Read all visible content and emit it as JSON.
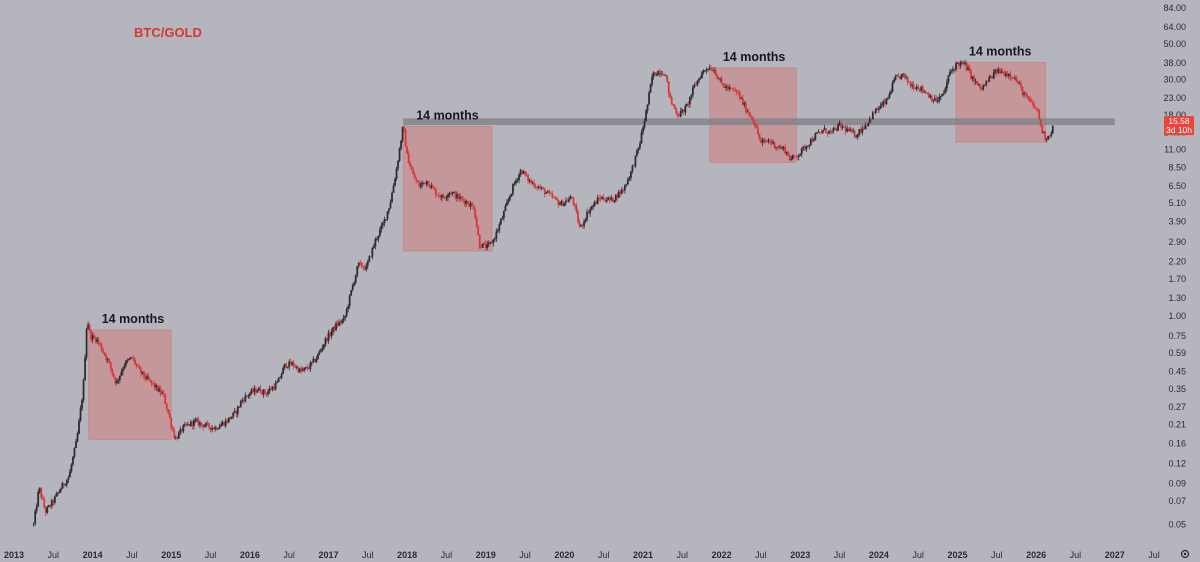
{
  "chart_data": {
    "type": "line",
    "title": "BTC/GOLD",
    "scale": "log",
    "ylim": [
      0.04,
      84
    ],
    "xlim": [
      2013.0,
      2027.55
    ],
    "y_ticks": [
      "84.00",
      "64.00",
      "50.00",
      "38.00",
      "30.00",
      "23.00",
      "18.00",
      "14.00",
      "11.00",
      "8.50",
      "6.50",
      "5.10",
      "3.90",
      "2.90",
      "2.20",
      "1.70",
      "1.30",
      "1.00",
      "0.75",
      "0.59",
      "0.45",
      "0.35",
      "0.27",
      "0.21",
      "0.16",
      "0.12",
      "0.09",
      "0.07",
      "0.05"
    ],
    "x_ticks": [
      {
        "label": "2013",
        "x": 2013.0
      },
      {
        "label": "Jul",
        "x": 2013.5
      },
      {
        "label": "2014",
        "x": 2014.0
      },
      {
        "label": "Jul",
        "x": 2014.5
      },
      {
        "label": "2015",
        "x": 2015.0
      },
      {
        "label": "Jul",
        "x": 2015.5
      },
      {
        "label": "2016",
        "x": 2016.0
      },
      {
        "label": "Jul",
        "x": 2016.5
      },
      {
        "label": "2017",
        "x": 2017.0
      },
      {
        "label": "Jul",
        "x": 2017.5
      },
      {
        "label": "2018",
        "x": 2018.0
      },
      {
        "label": "Jul",
        "x": 2018.5
      },
      {
        "label": "2019",
        "x": 2019.0
      },
      {
        "label": "Jul",
        "x": 2019.5
      },
      {
        "label": "2020",
        "x": 2020.0
      },
      {
        "label": "Jul",
        "x": 2020.5
      },
      {
        "label": "2021",
        "x": 2021.0
      },
      {
        "label": "Jul",
        "x": 2021.5
      },
      {
        "label": "2022",
        "x": 2022.0
      },
      {
        "label": "Jul",
        "x": 2022.5
      },
      {
        "label": "2023",
        "x": 2023.0
      },
      {
        "label": "Jul",
        "x": 2023.5
      },
      {
        "label": "2024",
        "x": 2024.0
      },
      {
        "label": "Jul",
        "x": 2024.5
      },
      {
        "label": "2025",
        "x": 2025.0
      },
      {
        "label": "Jul",
        "x": 2025.5
      },
      {
        "label": "2026",
        "x": 2026.0
      },
      {
        "label": "Jul",
        "x": 2026.5
      },
      {
        "label": "2027",
        "x": 2027.0
      },
      {
        "label": "Jul",
        "x": 2027.5
      }
    ],
    "series": [
      {
        "points": [
          [
            2013.25,
            0.05
          ],
          [
            2013.32,
            0.085
          ],
          [
            2013.4,
            0.06
          ],
          [
            2013.5,
            0.07
          ],
          [
            2013.6,
            0.085
          ],
          [
            2013.7,
            0.1
          ],
          [
            2013.8,
            0.17
          ],
          [
            2013.88,
            0.35
          ],
          [
            2013.93,
            0.98
          ],
          [
            2013.97,
            0.75
          ],
          [
            2014.05,
            0.72
          ],
          [
            2014.12,
            0.62
          ],
          [
            2014.2,
            0.52
          ],
          [
            2014.3,
            0.38
          ],
          [
            2014.4,
            0.5
          ],
          [
            2014.5,
            0.55
          ],
          [
            2014.6,
            0.45
          ],
          [
            2014.7,
            0.4
          ],
          [
            2014.8,
            0.36
          ],
          [
            2014.9,
            0.32
          ],
          [
            2014.97,
            0.24
          ],
          [
            2015.05,
            0.17
          ],
          [
            2015.15,
            0.2
          ],
          [
            2015.3,
            0.22
          ],
          [
            2015.4,
            0.21
          ],
          [
            2015.55,
            0.2
          ],
          [
            2015.7,
            0.22
          ],
          [
            2015.82,
            0.25
          ],
          [
            2015.9,
            0.3
          ],
          [
            2016.0,
            0.33
          ],
          [
            2016.1,
            0.35
          ],
          [
            2016.2,
            0.33
          ],
          [
            2016.35,
            0.38
          ],
          [
            2016.45,
            0.5
          ],
          [
            2016.55,
            0.5
          ],
          [
            2016.65,
            0.45
          ],
          [
            2016.75,
            0.48
          ],
          [
            2016.85,
            0.55
          ],
          [
            2016.97,
            0.72
          ],
          [
            2017.1,
            0.88
          ],
          [
            2017.2,
            0.95
          ],
          [
            2017.3,
            1.5
          ],
          [
            2017.38,
            2.1
          ],
          [
            2017.48,
            2.0
          ],
          [
            2017.6,
            3.0
          ],
          [
            2017.7,
            3.8
          ],
          [
            2017.78,
            5.0
          ],
          [
            2017.86,
            8.0
          ],
          [
            2017.95,
            15.5
          ],
          [
            2018.0,
            10.0
          ],
          [
            2018.08,
            7.5
          ],
          [
            2018.15,
            6.5
          ],
          [
            2018.25,
            7.0
          ],
          [
            2018.35,
            6.0
          ],
          [
            2018.45,
            5.5
          ],
          [
            2018.55,
            6.0
          ],
          [
            2018.65,
            5.5
          ],
          [
            2018.75,
            5.2
          ],
          [
            2018.85,
            4.8
          ],
          [
            2018.92,
            2.8
          ],
          [
            2019.02,
            2.7
          ],
          [
            2019.1,
            3.0
          ],
          [
            2019.2,
            4.0
          ],
          [
            2019.35,
            6.5
          ],
          [
            2019.45,
            8.2
          ],
          [
            2019.55,
            7.0
          ],
          [
            2019.65,
            6.5
          ],
          [
            2019.75,
            6.0
          ],
          [
            2019.85,
            5.5
          ],
          [
            2019.95,
            5.0
          ],
          [
            2020.1,
            5.5
          ],
          [
            2020.2,
            3.5
          ],
          [
            2020.3,
            4.5
          ],
          [
            2020.45,
            5.5
          ],
          [
            2020.6,
            5.3
          ],
          [
            2020.75,
            6.2
          ],
          [
            2020.85,
            8.0
          ],
          [
            2020.95,
            11.5
          ],
          [
            2021.05,
            20.0
          ],
          [
            2021.12,
            32.0
          ],
          [
            2021.2,
            34.0
          ],
          [
            2021.28,
            33.0
          ],
          [
            2021.35,
            22.0
          ],
          [
            2021.45,
            18.0
          ],
          [
            2021.55,
            20.0
          ],
          [
            2021.65,
            27.0
          ],
          [
            2021.75,
            33.0
          ],
          [
            2021.82,
            36.0
          ],
          [
            2021.9,
            35.0
          ],
          [
            2022.0,
            28.0
          ],
          [
            2022.1,
            26.0
          ],
          [
            2022.2,
            25.0
          ],
          [
            2022.3,
            20.0
          ],
          [
            2022.4,
            17.0
          ],
          [
            2022.5,
            12.0
          ],
          [
            2022.6,
            12.5
          ],
          [
            2022.7,
            11.5
          ],
          [
            2022.8,
            11.0
          ],
          [
            2022.88,
            9.5
          ],
          [
            2023.0,
            10.5
          ],
          [
            2023.1,
            12.0
          ],
          [
            2023.2,
            13.5
          ],
          [
            2023.3,
            14.5
          ],
          [
            2023.4,
            14.0
          ],
          [
            2023.5,
            15.5
          ],
          [
            2023.6,
            14.5
          ],
          [
            2023.7,
            13.5
          ],
          [
            2023.85,
            16.0
          ],
          [
            2023.95,
            19.0
          ],
          [
            2024.1,
            22.0
          ],
          [
            2024.2,
            30.0
          ],
          [
            2024.3,
            32.0
          ],
          [
            2024.4,
            28.0
          ],
          [
            2024.5,
            27.0
          ],
          [
            2024.6,
            25.0
          ],
          [
            2024.72,
            22.0
          ],
          [
            2024.82,
            24.0
          ],
          [
            2024.9,
            33.0
          ],
          [
            2025.0,
            38.0
          ],
          [
            2025.1,
            37.0
          ],
          [
            2025.2,
            30.0
          ],
          [
            2025.3,
            26.0
          ],
          [
            2025.4,
            30.0
          ],
          [
            2025.5,
            34.0
          ],
          [
            2025.6,
            33.0
          ],
          [
            2025.7,
            32.0
          ],
          [
            2025.78,
            28.0
          ],
          [
            2025.85,
            24.0
          ],
          [
            2025.95,
            21.0
          ],
          [
            2026.02,
            19.0
          ],
          [
            2026.07,
            14.5
          ],
          [
            2026.12,
            13.0
          ],
          [
            2026.17,
            13.5
          ],
          [
            2026.22,
            15.5
          ]
        ]
      }
    ],
    "last_price": {
      "value": 15.58,
      "label": "15.58",
      "countdown": "3d 10h"
    },
    "resistance_band": {
      "low": 15.6,
      "high": 17.2,
      "x_from": 2017.95,
      "x_to": 2027.0
    },
    "annotations": [
      {
        "label": "14 months",
        "x0": 2013.95,
        "x1": 2015.0,
        "y_low": 0.17,
        "y_high": 0.82
      },
      {
        "label": "14 months",
        "x0": 2017.95,
        "x1": 2019.08,
        "y_low": 2.55,
        "y_high": 15.3
      },
      {
        "label": "14 months",
        "x0": 2021.85,
        "x1": 2022.95,
        "y_low": 9.1,
        "y_high": 35.5
      },
      {
        "label": "14 months",
        "x0": 2024.98,
        "x1": 2026.12,
        "y_low": 12.2,
        "y_high": 38.5
      }
    ]
  }
}
